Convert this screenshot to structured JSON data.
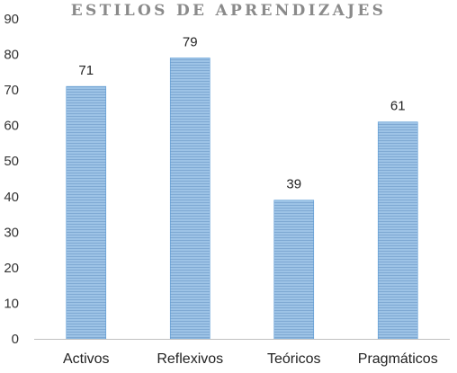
{
  "chart_data": {
    "type": "bar",
    "title": "ESTILOS DE APRENDIZAJES",
    "categories": [
      "Activos",
      "Reflexivos",
      "Teóricos",
      "Pragmáticos"
    ],
    "values": [
      71,
      79,
      39,
      61
    ],
    "ylim": [
      0,
      90
    ],
    "yticks": [
      0,
      10,
      20,
      30,
      40,
      50,
      60,
      70,
      80,
      90
    ],
    "grid": false,
    "legend": "none",
    "bar_color": "#9dc3e6",
    "bar_stripe_color": "#7fa9d3",
    "bar_edge_color": "#5b9bd5"
  }
}
